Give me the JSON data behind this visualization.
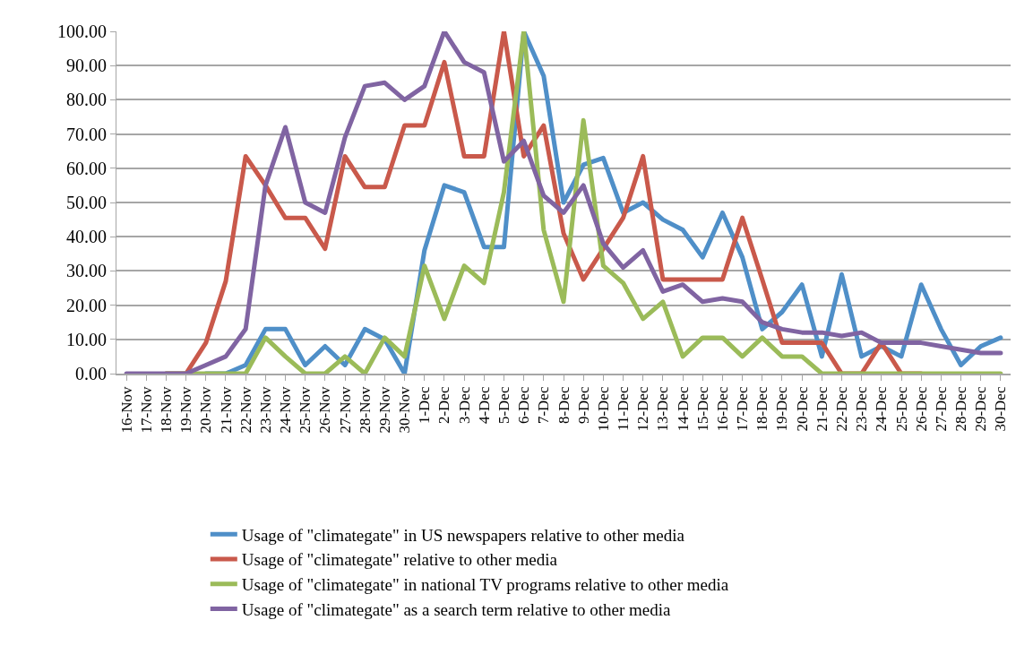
{
  "chart_data": {
    "type": "line",
    "categories": [
      "16-Nov",
      "17-Nov",
      "18-Nov",
      "19-Nov",
      "20-Nov",
      "21-Nov",
      "22-Nov",
      "23-Nov",
      "24-Nov",
      "25-Nov",
      "26-Nov",
      "27-Nov",
      "28-Nov",
      "29-Nov",
      "30-Nov",
      "1-Dec",
      "2-Dec",
      "3-Dec",
      "4-Dec",
      "5-Dec",
      "6-Dec",
      "7-Dec",
      "8-Dec",
      "9-Dec",
      "10-Dec",
      "11-Dec",
      "12-Dec",
      "13-Dec",
      "14-Dec",
      "15-Dec",
      "16-Dec",
      "17-Dec",
      "18-Dec",
      "19-Dec",
      "20-Dec",
      "21-Dec",
      "22-Dec",
      "23-Dec",
      "24-Dec",
      "25-Dec",
      "26-Dec",
      "27-Dec",
      "28-Dec",
      "29-Dec",
      "30-Dec"
    ],
    "series": [
      {
        "name": "Usage of \"climategate\" in US newspapers relative to other media",
        "color": "#4f8fc8",
        "values": [
          null,
          null,
          null,
          null,
          0,
          0,
          2.5,
          13,
          13,
          2.5,
          8,
          2.5,
          13,
          10,
          0,
          36,
          55,
          53,
          37,
          37,
          100,
          87,
          50,
          61,
          63,
          47,
          50,
          45,
          42,
          34,
          47,
          34,
          13,
          18,
          26,
          5,
          29,
          5,
          8,
          5,
          26,
          13,
          2.5,
          8,
          10.5
        ]
      },
      {
        "name": "Usage of \"climategate\" relative to other media",
        "color": "#c9594b",
        "values": [
          null,
          null,
          0,
          0,
          9,
          27,
          63.5,
          55,
          45.5,
          45.5,
          36.5,
          63.5,
          54.5,
          54.5,
          72.5,
          72.5,
          91,
          63.5,
          63.5,
          100,
          63.5,
          72.5,
          41,
          27.5,
          36.5,
          45.5,
          63.5,
          27.5,
          27.5,
          27.5,
          27.5,
          45.5,
          27.5,
          9,
          9,
          9,
          0,
          0,
          9,
          0,
          0,
          null,
          null,
          null,
          null
        ]
      },
      {
        "name": "Usage of \"climategate\" in national TV programs relative to other media",
        "color": "#9bbb59",
        "values": [
          null,
          null,
          0,
          0,
          0,
          0,
          0,
          10.5,
          5,
          0,
          0,
          5,
          0,
          10.5,
          5,
          31.5,
          16,
          31.5,
          26.5,
          53,
          100,
          42,
          21,
          74,
          31.5,
          26.5,
          16,
          21,
          5,
          10.5,
          10.5,
          5,
          10.5,
          5,
          5,
          0,
          0,
          0,
          0,
          0,
          0,
          0,
          0,
          0,
          0
        ]
      },
      {
        "name": "Usage of \"climategate\" as a search term relative to other media",
        "color": "#8064a2",
        "values": [
          0,
          0,
          0,
          0,
          2.5,
          5,
          13,
          55,
          72,
          50,
          47,
          69,
          84,
          85,
          80,
          84,
          100,
          91,
          88,
          62,
          68,
          52,
          47,
          55,
          38,
          31,
          36,
          24,
          26,
          21,
          22,
          21,
          15,
          13,
          12,
          12,
          11,
          12,
          9,
          9,
          9,
          8,
          7,
          6,
          6
        ]
      }
    ],
    "ylim": [
      0,
      100
    ],
    "yticks": [
      {
        "value": 0,
        "label": "0.00"
      },
      {
        "value": 10,
        "label": "10.00"
      },
      {
        "value": 20,
        "label": "20.00"
      },
      {
        "value": 30,
        "label": "30.00"
      },
      {
        "value": 40,
        "label": "40.00"
      },
      {
        "value": 50,
        "label": "50.00"
      },
      {
        "value": 60,
        "label": "60.00"
      },
      {
        "value": 70,
        "label": "70.00"
      },
      {
        "value": 80,
        "label": "80.00"
      },
      {
        "value": 90,
        "label": "90.00"
      },
      {
        "value": 100,
        "label": "100.00"
      }
    ],
    "grid": "y",
    "legend": "bottom",
    "marker": "none",
    "line_style": "solid"
  }
}
